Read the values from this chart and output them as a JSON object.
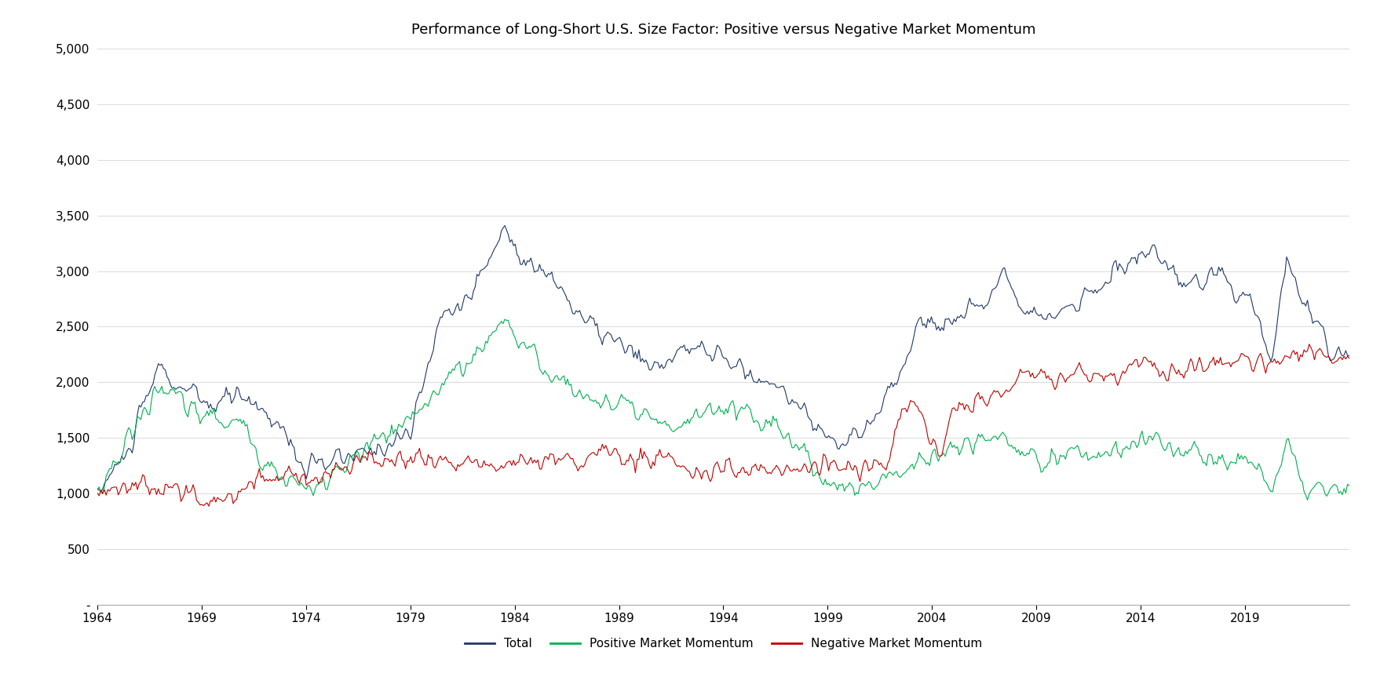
{
  "title": "Performance of Long-Short U.S. Size Factor: Positive versus Negative Market Momentum",
  "title_fontsize": 13,
  "line_colors": {
    "total": "#1F3864",
    "positive": "#00B050",
    "negative": "#C00000"
  },
  "line_widths": {
    "total": 0.8,
    "positive": 0.8,
    "negative": 0.8
  },
  "legend_labels": [
    "Total",
    "Positive Market Momentum",
    "Negative Market Momentum"
  ],
  "yticks": [
    0,
    500,
    1000,
    1500,
    2000,
    2500,
    3000,
    3500,
    4000,
    4500,
    5000
  ],
  "ytick_labels": [
    "-",
    "500",
    "1,000",
    "1,500",
    "2,000",
    "2,500",
    "3,000",
    "3,500",
    "4,000",
    "4,500",
    "5,000"
  ],
  "xtick_years": [
    1964,
    1969,
    1974,
    1979,
    1984,
    1989,
    1994,
    1999,
    2004,
    2009,
    2014,
    2019
  ],
  "ylim": [
    0,
    5000
  ],
  "background_color": "#ffffff",
  "legend_fontsize": 11,
  "tick_fontsize": 11
}
